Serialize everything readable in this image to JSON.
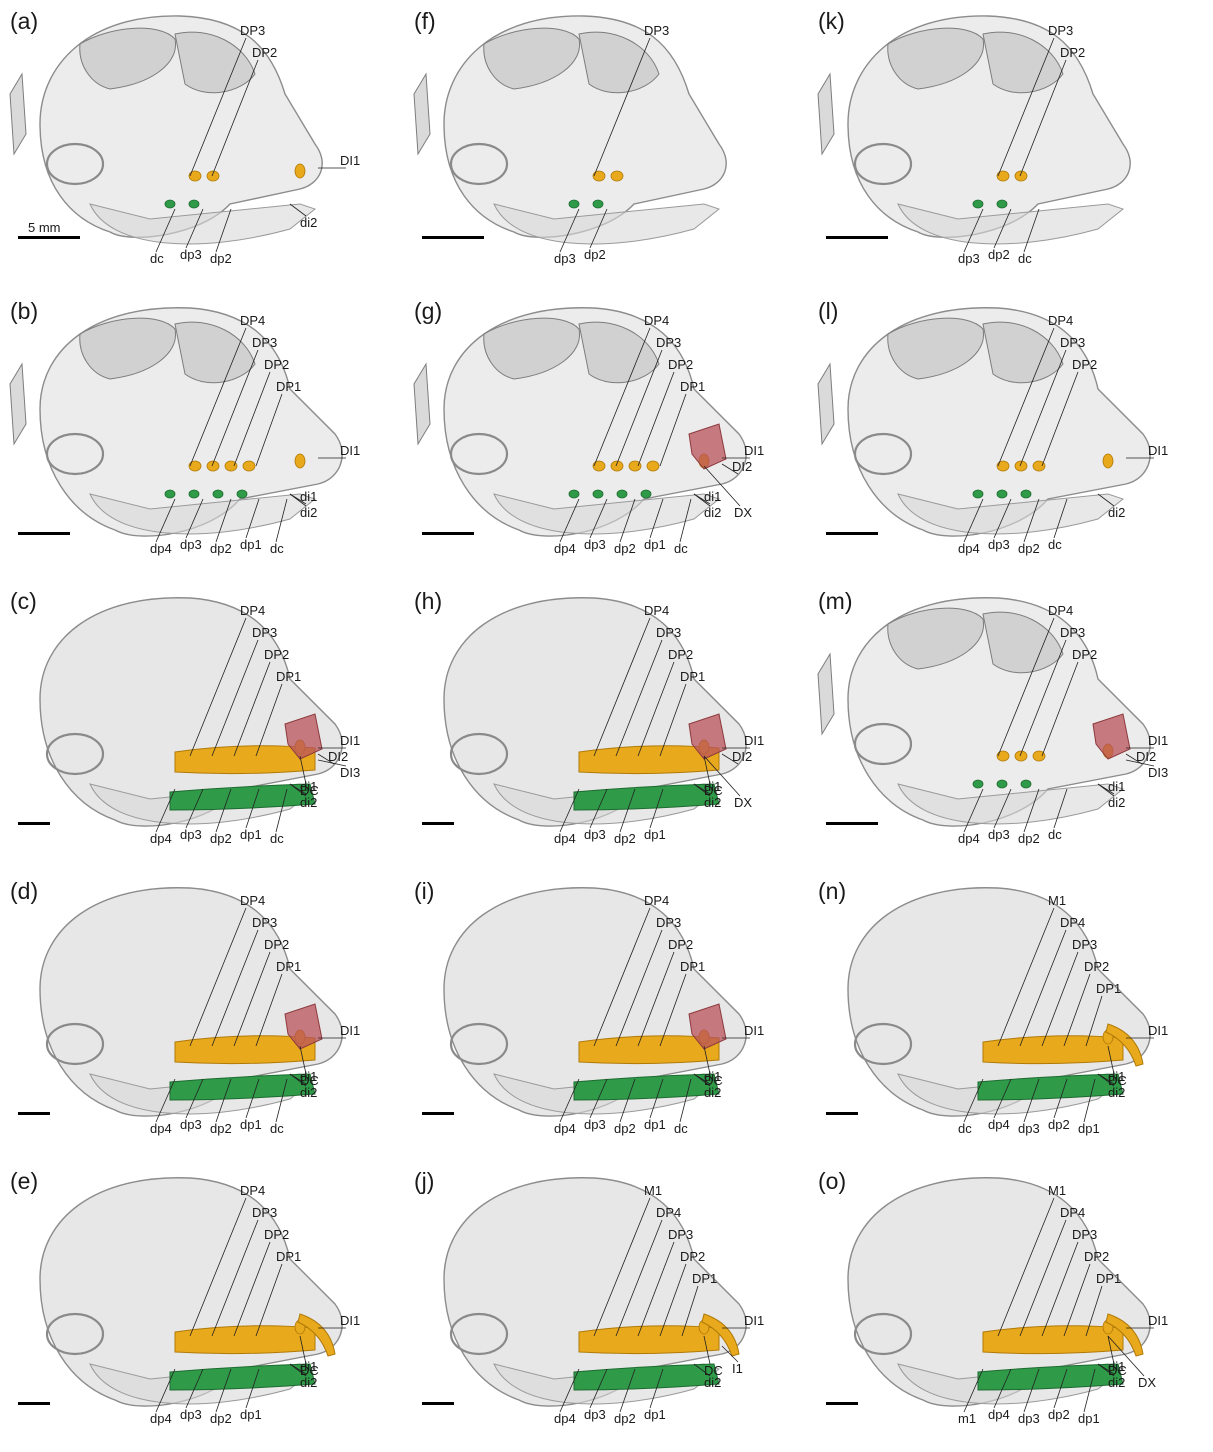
{
  "scale_label": "5 mm",
  "colors": {
    "upper_teeth": "#e9a91c",
    "lower_teeth": "#2f9a48",
    "canine_crypt": "#b9535a",
    "skull": "#c9c9c9"
  },
  "panels": [
    {
      "id": "a",
      "label": "(a)",
      "scale_text": "5 mm",
      "teeth": [
        "DP3",
        "DP2",
        "DI1",
        "dc",
        "di2",
        "dp3",
        "dp2"
      ]
    },
    {
      "id": "b",
      "label": "(b)",
      "teeth": [
        "DP4",
        "DP3",
        "DP2",
        "DP1",
        "DI1",
        "di1",
        "di2",
        "dp4",
        "dp3",
        "dp2",
        "dp1",
        "dc"
      ]
    },
    {
      "id": "c",
      "label": "(c)",
      "teeth": [
        "DP4",
        "DP3",
        "DP2",
        "DP1",
        "DC",
        "DI1",
        "DI2",
        "DI3",
        "di1",
        "di2",
        "dp4",
        "dp3",
        "dp2",
        "dp1",
        "dc"
      ]
    },
    {
      "id": "d",
      "label": "(d)",
      "teeth": [
        "DP4",
        "DP3",
        "DP2",
        "DP1",
        "DC",
        "DI1",
        "di1",
        "di2",
        "dp4",
        "dp3",
        "dp2",
        "dp1",
        "dc"
      ]
    },
    {
      "id": "e",
      "label": "(e)",
      "teeth": [
        "DP4",
        "DP3",
        "DP2",
        "DP1",
        "DC",
        "DI1",
        "di1",
        "di2",
        "dp4",
        "dp3",
        "dp2",
        "dp1"
      ]
    },
    {
      "id": "f",
      "label": "(f)",
      "teeth": [
        "DP3",
        "dp3",
        "dp2"
      ]
    },
    {
      "id": "g",
      "label": "(g)",
      "teeth": [
        "DP4",
        "DP3",
        "DP2",
        "DP1",
        "DI1",
        "DI2",
        "DX",
        "di1",
        "di2",
        "dp4",
        "dp3",
        "dp2",
        "dp1",
        "dc"
      ]
    },
    {
      "id": "h",
      "label": "(h)",
      "teeth": [
        "DP4",
        "DP3",
        "DP2",
        "DP1",
        "DI1",
        "DI2",
        "DC",
        "DX",
        "di1",
        "di2",
        "dp4",
        "dp3",
        "dp2",
        "dp1"
      ]
    },
    {
      "id": "i",
      "label": "(i)",
      "teeth": [
        "DP4",
        "DP3",
        "DP2",
        "DP1",
        "DC",
        "DI1",
        "di1",
        "di2",
        "dp4",
        "dp3",
        "dp2",
        "dp1",
        "dc"
      ]
    },
    {
      "id": "j",
      "label": "(j)",
      "teeth": [
        "M1",
        "DP4",
        "DP3",
        "DP2",
        "DP1",
        "DI1",
        "I1",
        "DC",
        "di2",
        "dp4",
        "dp3",
        "dp2",
        "dp1"
      ]
    },
    {
      "id": "k",
      "label": "(k)",
      "teeth": [
        "DP3",
        "DP2",
        "dp3",
        "dp2",
        "dc"
      ]
    },
    {
      "id": "l",
      "label": "(l)",
      "teeth": [
        "DP4",
        "DP3",
        "DP2",
        "DI1",
        "dp4",
        "dp3",
        "dp2",
        "dc",
        "di2"
      ]
    },
    {
      "id": "m",
      "label": "(m)",
      "teeth": [
        "DP4",
        "DP3",
        "DP2",
        "DI1",
        "DI2",
        "DI3",
        "di1",
        "di2",
        "dp4",
        "dp3",
        "dp2",
        "dc"
      ]
    },
    {
      "id": "n",
      "label": "(n)",
      "teeth": [
        "M1",
        "DP4",
        "DP3",
        "DP2",
        "DP1",
        "DI1",
        "DC",
        "di1",
        "di2",
        "dc",
        "dp4",
        "dp3",
        "dp2",
        "dp1"
      ]
    },
    {
      "id": "o",
      "label": "(o)",
      "teeth": [
        "M1",
        "DP4",
        "DP3",
        "DP2",
        "DP1",
        "DI1",
        "DC",
        "DX",
        "di1",
        "di2",
        "m1",
        "dp4",
        "dp3",
        "dp2",
        "dp1"
      ]
    }
  ]
}
